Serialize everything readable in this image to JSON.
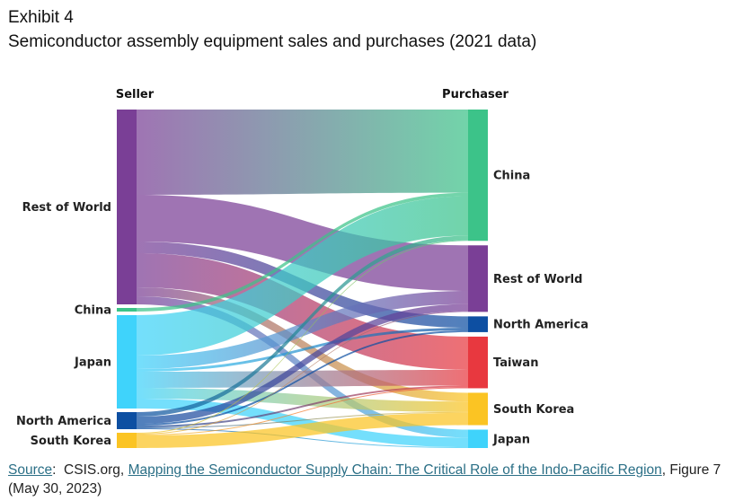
{
  "header": {
    "exhibit": "Exhibit 4",
    "title": "Semiconductor assembly equipment sales and purchases (2021 data)"
  },
  "chart_data": {
    "type": "sankey",
    "left_header": "Seller",
    "right_header": "Purchaser",
    "sellers": [
      {
        "id": "s_row",
        "label": "Rest of World",
        "color": "#7a3f96"
      },
      {
        "id": "s_china",
        "label": "China",
        "color": "#3cc389"
      },
      {
        "id": "s_japan",
        "label": "Japan",
        "color": "#3fd3fb"
      },
      {
        "id": "s_na",
        "label": "North America",
        "color": "#0d4fa2"
      },
      {
        "id": "s_sk",
        "label": "South Korea",
        "color": "#fbc423"
      }
    ],
    "purchasers": [
      {
        "id": "p_china",
        "label": "China",
        "color": "#3cc389"
      },
      {
        "id": "p_row",
        "label": "Rest of World",
        "color": "#7a3f96"
      },
      {
        "id": "p_na",
        "label": "North America",
        "color": "#0d4fa2"
      },
      {
        "id": "p_taiwan",
        "label": "Taiwan",
        "color": "#e8383f"
      },
      {
        "id": "p_sk",
        "label": "South Korea",
        "color": "#fbc423"
      },
      {
        "id": "p_japan",
        "label": "Japan",
        "color": "#3fd3fb"
      }
    ],
    "flows": [
      {
        "source": "s_row",
        "target": "p_china",
        "value": 95
      },
      {
        "source": "s_row",
        "target": "p_row",
        "value": 52
      },
      {
        "source": "s_row",
        "target": "p_na",
        "value": 13
      },
      {
        "source": "s_row",
        "target": "p_taiwan",
        "value": 38
      },
      {
        "source": "s_row",
        "target": "p_sk",
        "value": 10
      },
      {
        "source": "s_row",
        "target": "p_japan",
        "value": 9
      },
      {
        "source": "s_china",
        "target": "p_china",
        "value": 4
      },
      {
        "source": "s_japan",
        "target": "p_china",
        "value": 45
      },
      {
        "source": "s_japan",
        "target": "p_row",
        "value": 15
      },
      {
        "source": "s_japan",
        "target": "p_na",
        "value": 3
      },
      {
        "source": "s_japan",
        "target": "p_taiwan",
        "value": 18
      },
      {
        "source": "s_japan",
        "target": "p_sk",
        "value": 12
      },
      {
        "source": "s_japan",
        "target": "p_japan",
        "value": 11
      },
      {
        "source": "s_na",
        "target": "p_china",
        "value": 5
      },
      {
        "source": "s_na",
        "target": "p_row",
        "value": 8
      },
      {
        "source": "s_na",
        "target": "p_na",
        "value": 2
      },
      {
        "source": "s_na",
        "target": "p_taiwan",
        "value": 2
      },
      {
        "source": "s_na",
        "target": "p_sk",
        "value": 1
      },
      {
        "source": "s_na",
        "target": "p_japan",
        "value": 1
      },
      {
        "source": "s_sk",
        "target": "p_china",
        "value": 1
      },
      {
        "source": "s_sk",
        "target": "p_row",
        "value": 1
      },
      {
        "source": "s_sk",
        "target": "p_taiwan",
        "value": 1
      },
      {
        "source": "s_sk",
        "target": "p_sk",
        "value": 14
      }
    ]
  },
  "source": {
    "label": "Source",
    "org": "CSIS.org,",
    "link_text": "Mapping the Semiconductor Supply Chain: The Critical Role of the Indo-Pacific Region",
    "tail": ", Figure 7 (May 30, 2023)"
  }
}
